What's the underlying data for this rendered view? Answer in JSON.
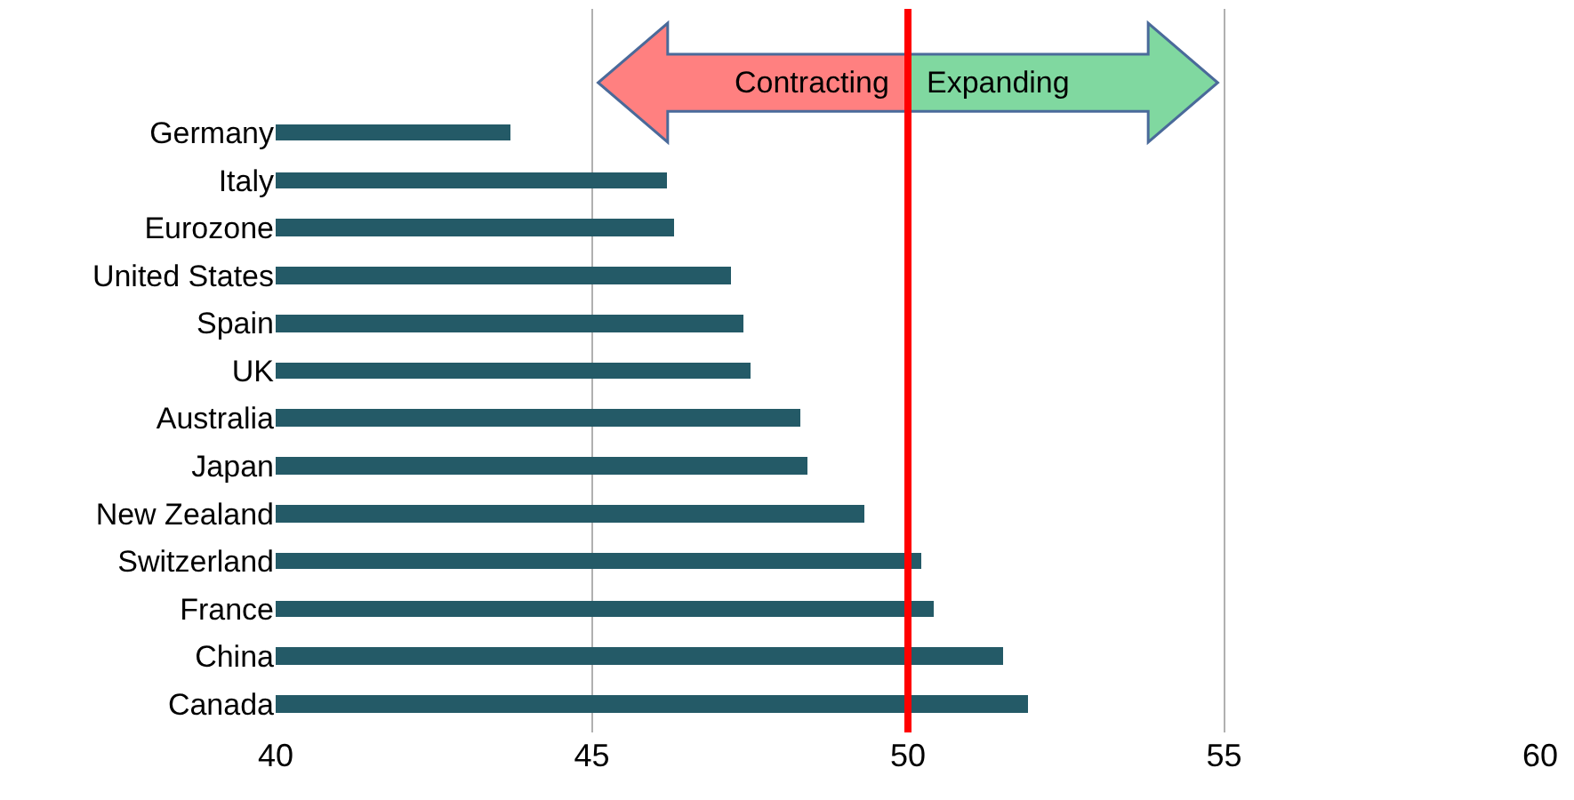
{
  "chart_data": {
    "type": "bar",
    "orientation": "horizontal",
    "categories": [
      "Germany",
      "Italy",
      "Eurozone",
      "United States",
      "Spain",
      "UK",
      "Australia",
      "Japan",
      "New Zealand",
      "Switzerland",
      "France",
      "China",
      "Canada"
    ],
    "values": [
      43.7,
      46.2,
      46.3,
      47.2,
      47.4,
      47.5,
      48.3,
      48.4,
      49.3,
      50.2,
      50.4,
      51.5,
      51.9
    ],
    "color": "#245a67",
    "xlim": [
      40,
      60
    ],
    "xticks": [
      40,
      45,
      50,
      55,
      60
    ],
    "grid": "x",
    "ref_lines": [
      {
        "axis": "x",
        "value": 50,
        "color": "#ff0000",
        "line_style": "solid"
      }
    ],
    "annotations": [
      "Contracting",
      "Expanding"
    ]
  }
}
